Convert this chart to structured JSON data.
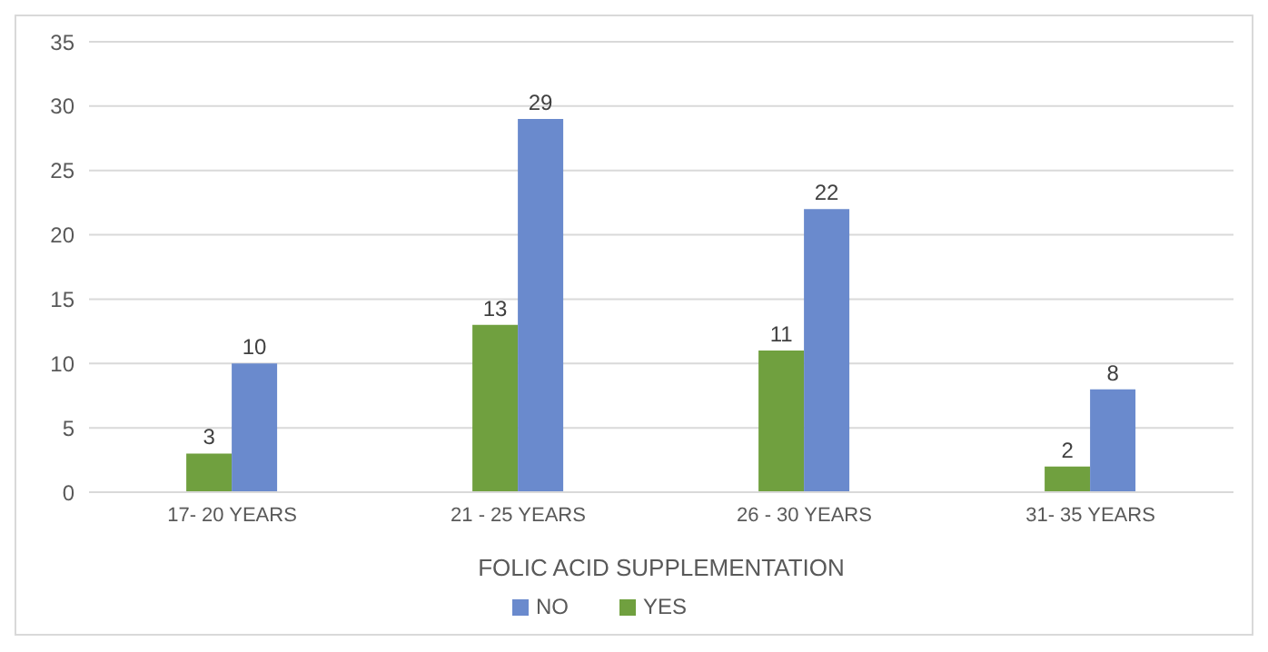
{
  "chart_data": {
    "type": "bar",
    "xlabel": "FOLIC ACID SUPPLEMENTATION",
    "categories": [
      "17- 20 YEARS",
      "21 - 25 YEARS",
      "26 - 30 YEARS",
      "31- 35 YEARS"
    ],
    "series": [
      {
        "name": "YES",
        "color": "#70a03f",
        "values": [
          3,
          13,
          11,
          2
        ]
      },
      {
        "name": "NO",
        "color": "#6a8acd",
        "values": [
          10,
          29,
          22,
          8
        ]
      }
    ],
    "ylim": [
      0,
      35
    ],
    "yticks": [
      0,
      5,
      10,
      15,
      20,
      25,
      30,
      35
    ],
    "grid": "y",
    "legend": "bottom",
    "data_labels": true
  }
}
